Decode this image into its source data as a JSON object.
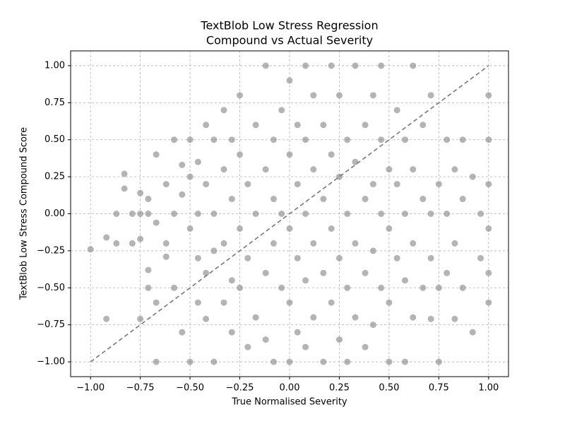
{
  "chart_data": {
    "type": "scatter",
    "title": [
      "TextBlob Low Stress Regression",
      "Compound vs Actual Severity"
    ],
    "x_label": "True Normalised Severity",
    "y_label": "TextBlob Low Stress Compound Score",
    "color": "#8c8c8c",
    "grid": true,
    "xlim": [
      -1.1,
      1.1
    ],
    "ylim": [
      -1.1,
      1.1
    ],
    "xticks": [
      {
        "value": -1,
        "label": "−1.00"
      },
      {
        "value": -0.75,
        "label": "−0.75"
      },
      {
        "value": -0.5,
        "label": "−0.50"
      },
      {
        "value": -0.25,
        "label": "−0.25"
      },
      {
        "value": 0,
        "label": "0.00"
      },
      {
        "value": 0.25,
        "label": "0.25"
      },
      {
        "value": 0.5,
        "label": "0.50"
      },
      {
        "value": 0.75,
        "label": "0.75"
      },
      {
        "value": 1,
        "label": "1.00"
      }
    ],
    "yticks": [
      {
        "value": -1,
        "label": "−1.00"
      },
      {
        "value": -0.75,
        "label": "−0.75"
      },
      {
        "value": -0.5,
        "label": "−0.50"
      },
      {
        "value": -0.25,
        "label": "−0.25"
      },
      {
        "value": 0,
        "label": "0.00"
      },
      {
        "value": 0.25,
        "label": "0.25"
      },
      {
        "value": 0.5,
        "label": "0.50"
      },
      {
        "value": 0.75,
        "label": "0.75"
      },
      {
        "value": 1,
        "label": "1.00"
      }
    ],
    "diagonal": {
      "color": "#777777",
      "x": [
        -1,
        1
      ],
      "y": [
        -1,
        1
      ]
    },
    "x": [
      -1.0,
      -0.92,
      -0.92,
      -0.87,
      -0.87,
      -0.83,
      -0.83,
      -0.79,
      -0.79,
      -0.75,
      -0.75,
      -0.75,
      -0.75,
      -0.71,
      -0.71,
      -0.71,
      -0.71,
      -0.67,
      -0.67,
      -0.67,
      -0.67,
      -0.62,
      -0.62,
      -0.62,
      -0.58,
      -0.58,
      -0.58,
      -0.54,
      -0.54,
      -0.54,
      -0.5,
      -0.5,
      -0.5,
      -0.5,
      -0.46,
      -0.46,
      -0.46,
      -0.46,
      -0.42,
      -0.42,
      -0.42,
      -0.42,
      -0.38,
      -0.38,
      -0.38,
      -0.38,
      -0.33,
      -0.33,
      -0.33,
      -0.33,
      -0.29,
      -0.29,
      -0.29,
      -0.29,
      -0.25,
      -0.25,
      -0.25,
      -0.25,
      -0.21,
      -0.21,
      -0.21,
      -0.17,
      -0.17,
      -0.17,
      -0.12,
      -0.12,
      -0.12,
      -0.12,
      -0.08,
      -0.08,
      -0.08,
      -0.08,
      -0.04,
      -0.04,
      -0.04,
      0.0,
      0.0,
      0.0,
      0.0,
      0.0,
      0.04,
      0.04,
      0.04,
      0.04,
      0.08,
      0.08,
      0.08,
      0.08,
      0.08,
      0.12,
      0.12,
      0.12,
      0.12,
      0.17,
      0.17,
      0.17,
      0.17,
      0.21,
      0.21,
      0.21,
      0.21,
      0.25,
      0.25,
      0.25,
      0.25,
      0.29,
      0.29,
      0.29,
      0.29,
      0.33,
      0.33,
      0.33,
      0.33,
      0.38,
      0.38,
      0.38,
      0.38,
      0.42,
      0.42,
      0.42,
      0.42,
      0.46,
      0.46,
      0.46,
      0.46,
      0.5,
      0.5,
      0.5,
      0.5,
      0.54,
      0.54,
      0.54,
      0.58,
      0.58,
      0.58,
      0.58,
      0.62,
      0.62,
      0.62,
      0.62,
      0.67,
      0.67,
      0.67,
      0.71,
      0.71,
      0.71,
      0.71,
      0.75,
      0.75,
      0.75,
      0.79,
      0.79,
      0.79,
      0.83,
      0.83,
      0.83,
      0.87,
      0.87,
      0.87,
      0.92,
      0.92,
      0.96,
      0.96,
      1.0,
      1.0,
      1.0,
      1.0,
      1.0,
      1.0
    ],
    "y": [
      -0.24,
      -0.16,
      -0.71,
      0.0,
      -0.2,
      0.27,
      0.17,
      0.0,
      -0.2,
      0.14,
      0.0,
      -0.71,
      -0.17,
      0.1,
      -0.38,
      -0.5,
      0.0,
      0.4,
      -0.6,
      -1.0,
      -0.06,
      0.2,
      -0.2,
      -0.29,
      0.5,
      0.0,
      -0.5,
      0.33,
      0.13,
      -0.8,
      0.5,
      0.25,
      -0.1,
      -1.0,
      0.35,
      0.0,
      -0.3,
      -0.6,
      0.6,
      0.2,
      -0.4,
      -0.71,
      0.5,
      0.0,
      -0.25,
      -1.0,
      0.7,
      0.3,
      -0.2,
      -0.6,
      0.5,
      0.1,
      -0.45,
      -0.8,
      0.8,
      0.4,
      -0.1,
      -0.5,
      0.2,
      -0.3,
      -0.9,
      0.6,
      0.0,
      -0.7,
      1.0,
      0.3,
      -0.4,
      -0.85,
      0.5,
      0.1,
      -0.2,
      -1.0,
      0.7,
      0.0,
      -0.5,
      0.9,
      0.4,
      -0.1,
      -0.6,
      -1.0,
      0.6,
      0.2,
      -0.3,
      -0.8,
      1.0,
      0.5,
      0.0,
      -0.45,
      -0.9,
      0.8,
      0.3,
      -0.2,
      -0.7,
      0.6,
      0.1,
      -0.4,
      -1.0,
      1.0,
      0.4,
      -0.1,
      -0.6,
      0.8,
      0.25,
      -0.3,
      -0.85,
      0.5,
      0.0,
      -0.5,
      -1.0,
      1.0,
      0.35,
      -0.2,
      -0.7,
      0.6,
      0.1,
      -0.4,
      -0.9,
      0.8,
      0.2,
      -0.25,
      -0.75,
      1.0,
      0.5,
      0.0,
      -0.5,
      0.3,
      -0.1,
      -0.6,
      -1.0,
      0.7,
      0.2,
      -0.3,
      0.5,
      0.0,
      -0.45,
      -1.0,
      1.0,
      0.3,
      -0.2,
      -0.7,
      0.6,
      0.1,
      -0.5,
      0.8,
      0.0,
      -0.3,
      -0.71,
      0.2,
      -0.5,
      -1.0,
      0.5,
      0.0,
      -0.4,
      0.3,
      -0.2,
      -0.71,
      0.5,
      0.1,
      -0.5,
      0.25,
      -0.8,
      0.0,
      -0.3,
      0.8,
      0.5,
      0.2,
      -0.1,
      -0.4,
      -0.6
    ]
  }
}
